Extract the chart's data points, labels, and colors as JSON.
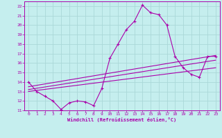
{
  "xlabel": "Windchill (Refroidissement éolien,°C)",
  "xlim": [
    -0.5,
    23.5
  ],
  "ylim": [
    11,
    22.5
  ],
  "yticks": [
    11,
    12,
    13,
    14,
    15,
    16,
    17,
    18,
    19,
    20,
    21,
    22
  ],
  "xticks": [
    0,
    1,
    2,
    3,
    4,
    5,
    6,
    7,
    8,
    9,
    10,
    11,
    12,
    13,
    14,
    15,
    16,
    17,
    18,
    19,
    20,
    21,
    22,
    23
  ],
  "bg_color": "#c5eeee",
  "grid_color": "#aad8d8",
  "line_color": "#aa00aa",
  "main_x": [
    0,
    1,
    2,
    3,
    4,
    5,
    6,
    7,
    8,
    9,
    10,
    11,
    12,
    13,
    14,
    15,
    16,
    17,
    18,
    19,
    20,
    21,
    22,
    23
  ],
  "main_y": [
    14.0,
    13.0,
    12.5,
    12.0,
    11.1,
    11.8,
    12.0,
    11.9,
    11.5,
    13.3,
    16.5,
    18.0,
    19.5,
    20.4,
    22.1,
    21.3,
    21.1,
    20.0,
    16.7,
    15.5,
    14.8,
    14.5,
    16.7,
    16.7
  ],
  "line1_x": [
    0,
    23
  ],
  "line1_y": [
    13.5,
    16.8
  ],
  "line2_x": [
    0,
    23
  ],
  "line2_y": [
    13.2,
    16.3
  ],
  "line3_x": [
    0,
    23
  ],
  "line3_y": [
    13.0,
    15.5
  ]
}
